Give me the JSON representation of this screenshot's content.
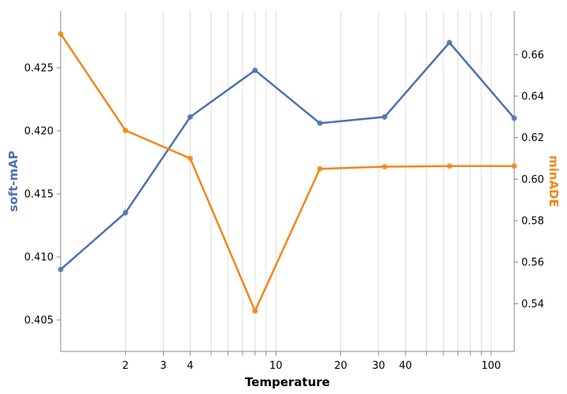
{
  "chart_data": {
    "type": "line",
    "x_scale": "log",
    "x": [
      1,
      2,
      4,
      8,
      16,
      32,
      64,
      128
    ],
    "xlabel": "Temperature",
    "x_tick_labels": [
      "2",
      "3",
      "4",
      "10",
      "20",
      "30",
      "40",
      "100"
    ],
    "x_tick_values": [
      2,
      3,
      4,
      10,
      20,
      30,
      40,
      100
    ],
    "xlim": [
      1,
      128
    ],
    "grid": true,
    "legend": "none",
    "series": [
      {
        "name": "soft-mAP",
        "axis": "left",
        "color": "#4c72b0",
        "values": [
          0.409,
          0.4135,
          0.4211,
          0.4248,
          0.4206,
          0.4211,
          0.427,
          0.421
        ]
      },
      {
        "name": "minADE",
        "axis": "right",
        "color": "#f58518",
        "values": [
          0.67,
          0.6235,
          0.61,
          0.5365,
          0.605,
          0.606,
          0.6063,
          0.6063
        ]
      }
    ],
    "y_left": {
      "label": "soft-mAP",
      "ylim": [
        0.4025,
        0.4295
      ],
      "ticks": [
        0.405,
        0.41,
        0.415,
        0.42,
        0.425
      ],
      "tick_labels": [
        "0.405",
        "0.410",
        "0.415",
        "0.420",
        "0.425"
      ]
    },
    "y_right": {
      "label": "minADE",
      "ylim": [
        0.517,
        0.681
      ],
      "ticks": [
        0.54,
        0.56,
        0.58,
        0.6,
        0.62,
        0.64,
        0.66
      ],
      "tick_labels": [
        "0.54",
        "0.56",
        "0.58",
        "0.60",
        "0.62",
        "0.64",
        "0.66"
      ]
    }
  }
}
